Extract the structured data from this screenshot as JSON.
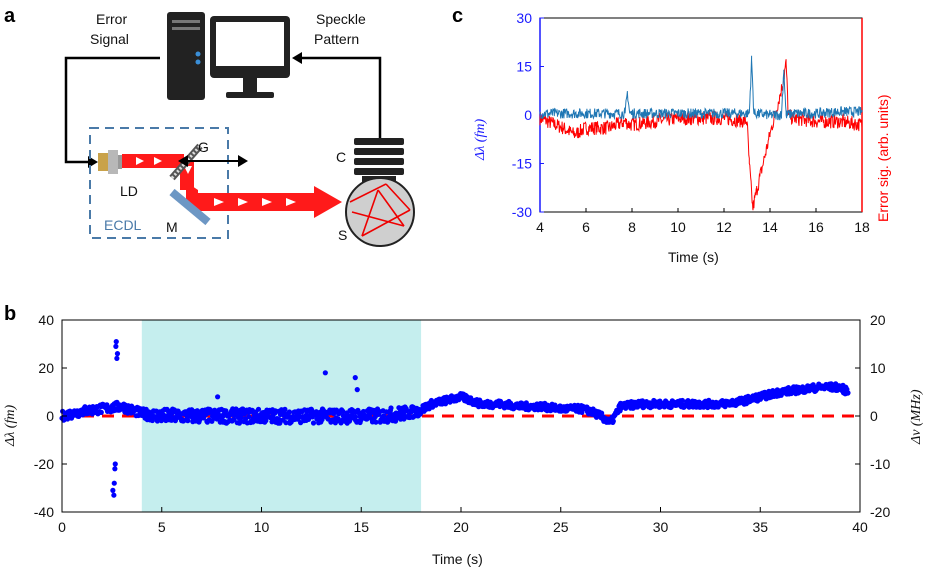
{
  "panel_labels": {
    "a": "a",
    "b": "b",
    "c": "c"
  },
  "schematic": {
    "error_signal_line1": "Error",
    "error_signal_line2": "Signal",
    "speckle_line1": "Speckle",
    "speckle_line2": "Pattern",
    "laser_diode": "LD",
    "grating": "G",
    "mirror": "M",
    "camera": "C",
    "sphere": "S",
    "ecdl": "ECDL"
  },
  "chart_data": [
    {
      "id": "c",
      "type": "line",
      "xlabel": "Time (s)",
      "ylabel": "Δλ (fm)",
      "ylabel_right": "Error sig. (arb. units)",
      "xlim": [
        4,
        18
      ],
      "ylim": [
        -30,
        30
      ],
      "xticks": [
        4,
        6,
        8,
        10,
        12,
        14,
        16,
        18
      ],
      "yticks": [
        -30,
        -15,
        0,
        15,
        30
      ],
      "colors": {
        "left_axis": "#1a1aff",
        "right_axis": "#ff0000",
        "blue_trace": "#1f77b4",
        "red_trace": "#ff0000"
      },
      "series": [
        {
          "name": "",
          "color": "#1f77b4",
          "x": [
            4,
            5,
            6,
            7,
            7.7,
            7.8,
            7.9,
            9,
            10,
            11,
            12,
            13,
            13.1,
            13.2,
            13.3,
            14,
            14.5,
            14.6,
            14.7,
            15,
            16,
            17,
            18
          ],
          "y": [
            0.5,
            0.5,
            0.5,
            0.5,
            0.5,
            7,
            0.5,
            0.5,
            0.5,
            0.5,
            0.5,
            0.5,
            0.5,
            17,
            0.5,
            0,
            0,
            14,
            0,
            0.5,
            0.5,
            1,
            1
          ]
        },
        {
          "name": "",
          "color": "#ff0000",
          "x": [
            4,
            5,
            5.5,
            6,
            7,
            7.7,
            7.9,
            9,
            10,
            11,
            12,
            13,
            13.1,
            13.25,
            13.4,
            14,
            14.5,
            14.7,
            14.8,
            15,
            16,
            17,
            18
          ],
          "y": [
            -1,
            -4,
            -6,
            -4,
            -4,
            -2,
            -3,
            -2,
            -1,
            -1,
            -1,
            -2,
            -15,
            -29,
            -24,
            -6,
            8,
            16,
            0,
            -1,
            -2,
            -2,
            -3
          ]
        }
      ]
    },
    {
      "id": "b",
      "type": "scatter",
      "xlabel": "Time (s)",
      "ylabel": "Δλ (fm)",
      "ylabel_right": "Δν (MHz)",
      "xlim": [
        0,
        40
      ],
      "ylim": [
        -40,
        40
      ],
      "ylim_right": [
        -20,
        20
      ],
      "xticks": [
        0,
        5,
        10,
        15,
        20,
        25,
        30,
        35,
        40
      ],
      "yticks": [
        -40,
        -20,
        0,
        20,
        40
      ],
      "yticks_right": [
        -20,
        -10,
        0,
        10,
        20
      ],
      "shaded_region": [
        4,
        18
      ],
      "reference_line": 0,
      "colors": {
        "points": "#0000ff",
        "reference": "#ff0000",
        "shade": "#c5eeee"
      },
      "outliers": {
        "x": [
          2.55,
          2.6,
          2.62,
          2.65,
          2.67,
          2.7,
          2.72,
          2.75,
          2.78,
          2.8,
          13.2,
          14.7,
          14.8,
          7.8
        ],
        "y": [
          -31,
          -33,
          -28,
          -22,
          -20,
          29,
          31,
          24,
          26,
          5,
          18,
          16,
          11,
          8
        ]
      },
      "trend": {
        "x": [
          0,
          1,
          2,
          3,
          4,
          5,
          6,
          7,
          8,
          9,
          10,
          11,
          12,
          13,
          14,
          15,
          16,
          17,
          17.9,
          18.5,
          19,
          20,
          21,
          22,
          23,
          24,
          25,
          26,
          26.5,
          27,
          27.5,
          28,
          29,
          30,
          31,
          32,
          33,
          34,
          35,
          36,
          37,
          38,
          39,
          39.4
        ],
        "y": [
          0,
          2,
          3,
          4,
          1,
          0,
          0,
          0,
          0,
          0,
          0,
          0,
          0,
          0,
          0,
          0,
          0,
          1,
          2,
          5,
          6,
          8,
          5,
          5,
          4,
          4,
          3,
          3,
          2,
          0,
          -3,
          4,
          5,
          5,
          5,
          5,
          5,
          6,
          8,
          10,
          11,
          12,
          12,
          10
        ],
        "noise": [
          2,
          2,
          2,
          2,
          2,
          3,
          3,
          3,
          3,
          3,
          3,
          3,
          3,
          3,
          3,
          3,
          3,
          3,
          2,
          1.5,
          1.5,
          1.5,
          1.5,
          1.5,
          1.5,
          1.5,
          1.5,
          1.5,
          1.5,
          1.5,
          1.5,
          1.5,
          1.5,
          1.5,
          1.5,
          1.5,
          1.5,
          1.5,
          1.5,
          1.5,
          1.5,
          1.5,
          1.5,
          1.5
        ]
      }
    }
  ]
}
